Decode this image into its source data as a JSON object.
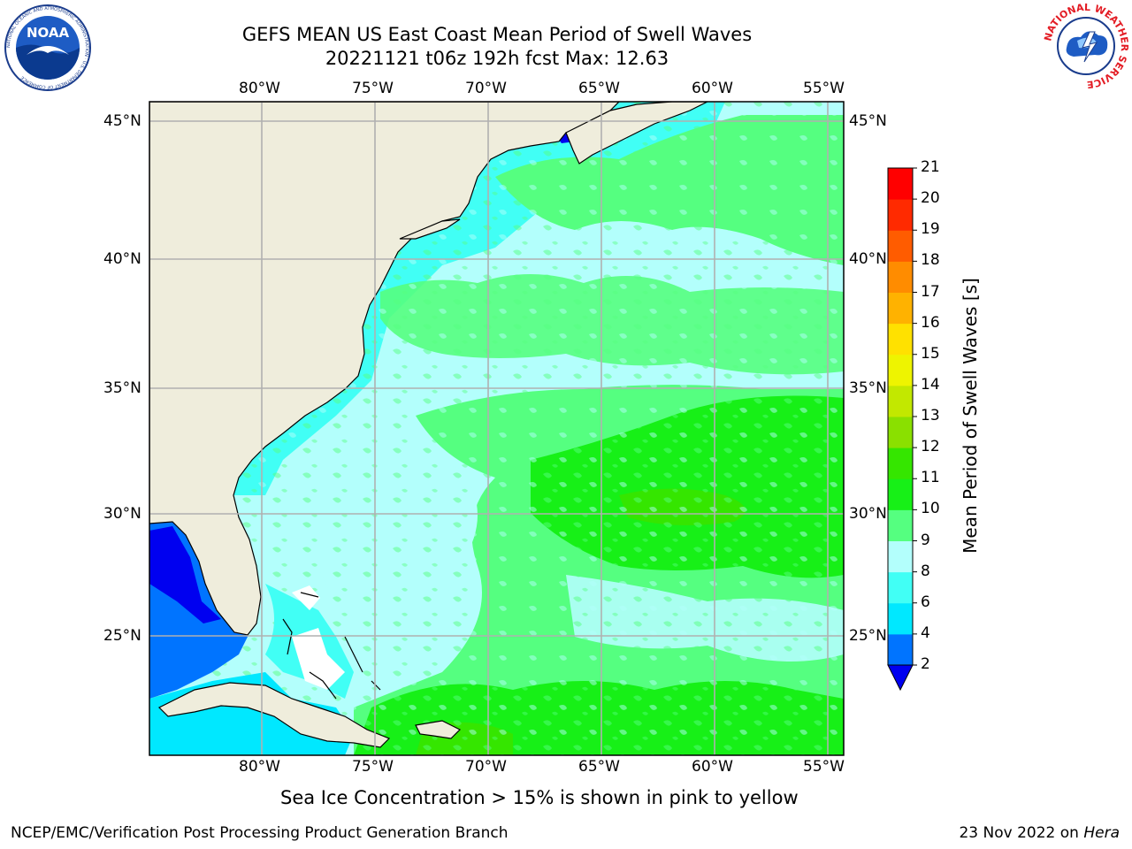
{
  "header": {
    "title": "GEFS MEAN US East Coast Mean Period of Swell Waves",
    "subtitle": "20221121 t06z 192h fcst   Max: 12.63"
  },
  "logos": {
    "left": {
      "text": "NOAA",
      "ring_text": "NATIONAL OCEANIC AND ATMOSPHERIC ADMINISTRATION · U.S. DEPARTMENT OF COMMERCE"
    },
    "right": {
      "ring_text": "NATIONAL WEATHER SERVICE"
    }
  },
  "map": {
    "lon_labels": [
      "80°W",
      "75°W",
      "70°W",
      "65°W",
      "60°W",
      "55°W"
    ],
    "lat_labels": [
      "45°N",
      "40°N",
      "35°N",
      "30°N",
      "25°N"
    ],
    "colors": {
      "land": "#efeddc",
      "ocean_base": "#b3fffc",
      "grid": "#b0b0b0",
      "ice_note": "#ffffff"
    }
  },
  "colorbar": {
    "title": "Mean Period of Swell Waves [s]",
    "ticks": [
      "2",
      "4",
      "6",
      "8",
      "9",
      "10",
      "11",
      "12",
      "13",
      "14",
      "15",
      "16",
      "17",
      "18",
      "19",
      "20",
      "21"
    ],
    "colors": [
      "#0000f0",
      "#0074ff",
      "#00e8ff",
      "#41fff5",
      "#b3fffc",
      "#55ff80",
      "#17f017",
      "#35e600",
      "#8ae000",
      "#c2e800",
      "#eef400",
      "#ffe100",
      "#ffb200",
      "#ff8c00",
      "#ff5c00",
      "#ff2a00",
      "#ff0000"
    ],
    "extend_color": "#0000f0"
  },
  "footer": {
    "note": "Sea Ice Concentration > 15% is shown in pink to yellow",
    "credit": "NCEP/EMC/Verification Post Processing Product Generation Branch",
    "date": "23 Nov 2022 on",
    "machine": "Hera"
  }
}
